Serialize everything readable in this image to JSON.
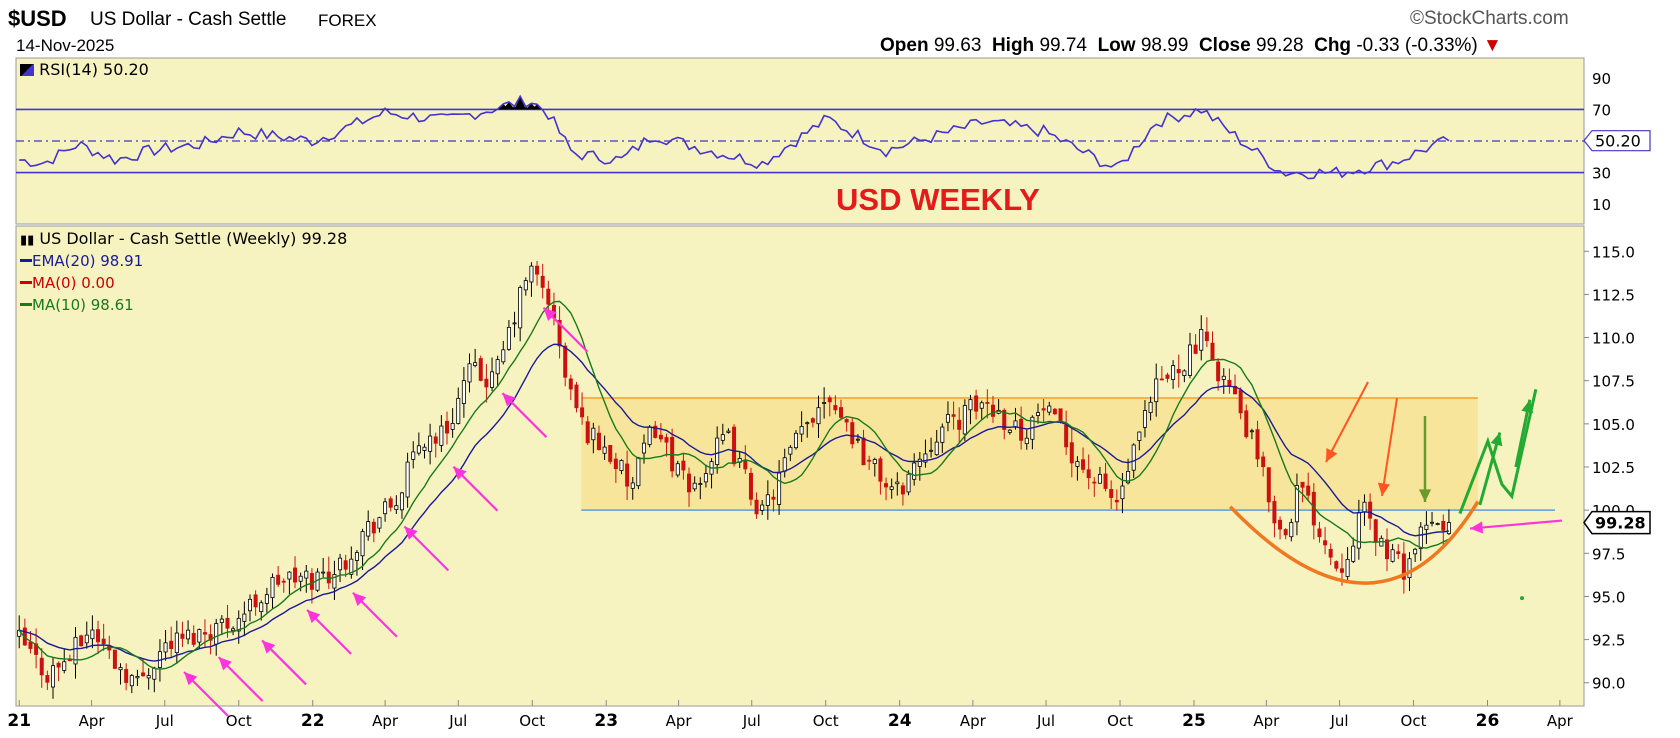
{
  "header": {
    "ticker": "$USD",
    "description": "US Dollar - Cash Settle",
    "exchange": "FOREX",
    "date": "14-Nov-2025",
    "brand": "©StockCharts.com",
    "open_label": "Open",
    "open": "99.63",
    "high_label": "High",
    "high": "99.74",
    "low_label": "Low",
    "low": "98.99",
    "close_label": "Close",
    "close": "99.28",
    "chg_label": "Chg",
    "chg": "-0.33 (-0.33%)",
    "chg_arrow": "▼"
  },
  "rsi_panel": {
    "label": "RSI(14) 50.20",
    "current_tag": "50.20",
    "ticks": [
      "90",
      "70",
      "50",
      "30",
      "10"
    ],
    "levels": {
      "overbought": 70,
      "oversold": 30,
      "mid": 50
    },
    "line_color": "#4433cc",
    "annotation": "USD WEEKLY"
  },
  "price_panel": {
    "label": "US Dollar - Cash Settle (Weekly) 99.28",
    "legend": [
      {
        "text": "EMA(20) 98.91",
        "color": "#1a1a99"
      },
      {
        "text": "MA(0) 0.00",
        "color": "#cc0000"
      },
      {
        "text": "MA(10) 98.61",
        "color": "#1a7a1a"
      }
    ],
    "last_price_tag": "99.28",
    "ticks": [
      "115.0",
      "112.5",
      "110.0",
      "107.5",
      "105.0",
      "102.5",
      "100.0",
      "97.5",
      "95.0",
      "92.5",
      "90.0"
    ]
  },
  "x_axis": {
    "labels": [
      "21",
      "Apr",
      "Jul",
      "Oct",
      "22",
      "Apr",
      "Jul",
      "Oct",
      "23",
      "Apr",
      "Jul",
      "Oct",
      "24",
      "Apr",
      "Jul",
      "Oct",
      "25",
      "Apr",
      "Jul",
      "Oct",
      "26",
      "Apr"
    ]
  },
  "chart_data": {
    "type": "candlestick",
    "frequency": "weekly",
    "ylim": [
      89,
      116
    ],
    "x_range": [
      "2020-12-28",
      "2026-05-01"
    ],
    "series": [
      {
        "name": "EMA(20)",
        "color": "#1a1a99"
      },
      {
        "name": "MA(10)",
        "color": "#1a7a1a"
      }
    ],
    "close_path": [
      [
        "2021-01-01",
        92.5
      ],
      [
        "2021-02-05",
        90.5
      ],
      [
        "2021-03-05",
        91.5
      ],
      [
        "2021-03-31",
        93.2
      ],
      [
        "2021-05-01",
        91.2
      ],
      [
        "2021-05-28",
        90.0
      ],
      [
        "2021-07-01",
        92.2
      ],
      [
        "2021-08-20",
        93.0
      ],
      [
        "2021-10-01",
        93.8
      ],
      [
        "2021-11-20",
        96.0
      ],
      [
        "2022-01-01",
        96.0
      ],
      [
        "2022-02-01",
        96.6
      ],
      [
        "2022-03-07",
        98.8
      ],
      [
        "2022-04-15",
        100.5
      ],
      [
        "2022-05-15",
        104.0
      ],
      [
        "2022-06-15",
        104.5
      ],
      [
        "2022-07-14",
        108.0
      ],
      [
        "2022-08-15",
        107.5
      ],
      [
        "2022-09-27",
        114.0
      ],
      [
        "2022-10-20",
        112.5
      ],
      [
        "2022-11-10",
        108.0
      ],
      [
        "2022-12-01",
        105.0
      ],
      [
        "2023-01-10",
        103.0
      ],
      [
        "2023-02-01",
        101.2
      ],
      [
        "2023-03-01",
        105.0
      ],
      [
        "2023-04-14",
        101.0
      ],
      [
        "2023-05-30",
        104.3
      ],
      [
        "2023-07-14",
        99.7
      ],
      [
        "2023-08-20",
        103.5
      ],
      [
        "2023-10-03",
        107.0
      ],
      [
        "2023-11-20",
        103.0
      ],
      [
        "2023-12-27",
        100.9
      ],
      [
        "2024-02-15",
        104.5
      ],
      [
        "2024-04-16",
        106.3
      ],
      [
        "2024-06-01",
        104.5
      ],
      [
        "2024-06-28",
        105.9
      ],
      [
        "2024-08-15",
        102.5
      ],
      [
        "2024-09-27",
        100.4
      ],
      [
        "2024-11-15",
        107.0
      ],
      [
        "2025-01-10",
        109.8
      ],
      [
        "2025-02-15",
        107.0
      ],
      [
        "2025-03-15",
        103.8
      ],
      [
        "2025-04-21",
        98.3
      ],
      [
        "2025-05-12",
        101.5
      ],
      [
        "2025-06-30",
        96.5
      ],
      [
        "2025-07-30",
        100.0
      ],
      [
        "2025-08-20",
        98.2
      ],
      [
        "2025-09-17",
        96.5
      ],
      [
        "2025-10-15",
        98.8
      ],
      [
        "2025-11-14",
        99.28
      ]
    ],
    "rsi_path": [
      [
        "2021-01-01",
        38
      ],
      [
        "2021-02-01",
        36
      ],
      [
        "2021-03-15",
        48
      ],
      [
        "2021-05-01",
        38
      ],
      [
        "2021-06-15",
        44
      ],
      [
        "2021-08-15",
        48
      ],
      [
        "2021-10-01",
        56
      ],
      [
        "2022-01-01",
        50
      ],
      [
        "2022-04-01",
        68
      ],
      [
        "2022-06-15",
        63
      ],
      [
        "2022-09-27",
        76
      ],
      [
        "2022-10-20",
        68
      ],
      [
        "2022-11-20",
        42
      ],
      [
        "2023-01-20",
        38
      ],
      [
        "2023-03-01",
        54
      ],
      [
        "2023-05-01",
        45
      ],
      [
        "2023-07-14",
        36
      ],
      [
        "2023-10-03",
        64
      ],
      [
        "2023-12-15",
        44
      ],
      [
        "2024-04-16",
        62
      ],
      [
        "2024-06-28",
        56
      ],
      [
        "2024-09-27",
        32
      ],
      [
        "2024-11-15",
        62
      ],
      [
        "2025-01-10",
        70
      ],
      [
        "2025-03-01",
        50
      ],
      [
        "2025-04-21",
        30
      ],
      [
        "2025-07-01",
        30
      ],
      [
        "2025-09-10",
        37
      ],
      [
        "2025-10-15",
        45
      ],
      [
        "2025-11-14",
        50.2
      ]
    ],
    "annotations": {
      "range_box": {
        "from": "2022-12-01",
        "to": "2025-12-20",
        "low": 100.0,
        "high": 106.5
      },
      "support_line": 100.0,
      "bowl": {
        "from": "2025-02-15",
        "bottom": "2025-08-20",
        "to": "2025-12-20"
      }
    }
  }
}
